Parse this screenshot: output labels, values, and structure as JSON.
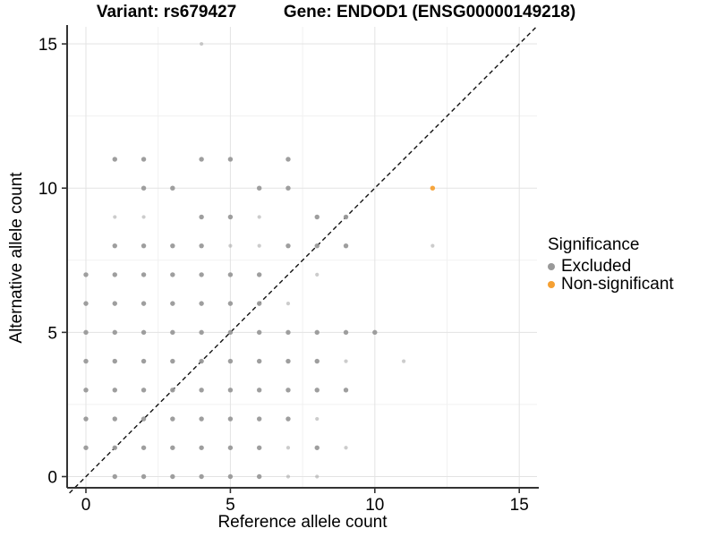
{
  "chart_data": {
    "type": "scatter",
    "title_left": "Variant: rs679427",
    "title_right": "Gene: ENDOD1 (ENSG00000149218)",
    "xlabel": "Reference allele count",
    "ylabel": "Alternative allele count",
    "xlim": [
      -0.65,
      15.6
    ],
    "ylim": [
      -0.45,
      15.6
    ],
    "x_ticks": [
      0,
      5,
      10,
      15
    ],
    "y_ticks": [
      0,
      5,
      10,
      15
    ],
    "x_minor_ticks": [
      2.5,
      7.5,
      12.5
    ],
    "y_minor_ticks": [
      2.5,
      7.5,
      12.5
    ],
    "grid": "on",
    "identity_line": {
      "type": "dashed",
      "slope": 1,
      "intercept": 0,
      "color": "#111111"
    },
    "legend": {
      "position": "right",
      "title": "Significance",
      "items": [
        {
          "label": "Excluded",
          "color": "#999999"
        },
        {
          "label": "Non-significant",
          "color": "#F5A033"
        }
      ]
    },
    "colors": {
      "excluded": "#999999",
      "non_significant": "#F5A033",
      "grid_major": "#e3e3e3",
      "grid_minor": "#f1f1f1",
      "axis": "#333333"
    },
    "series": [
      {
        "name": "Excluded",
        "color": "#999999",
        "points": [
          [
            1,
            0,
            "d"
          ],
          [
            2,
            0,
            "d"
          ],
          [
            3,
            0,
            "d"
          ],
          [
            4,
            0,
            "d"
          ],
          [
            5,
            0,
            "d"
          ],
          [
            6,
            0,
            "d"
          ],
          [
            7,
            0,
            "l"
          ],
          [
            8,
            0,
            "l"
          ],
          [
            0,
            1,
            "d"
          ],
          [
            1,
            1,
            "d"
          ],
          [
            2,
            1,
            "d"
          ],
          [
            3,
            1,
            "d"
          ],
          [
            4,
            1,
            "d"
          ],
          [
            5,
            1,
            "d"
          ],
          [
            6,
            1,
            "d"
          ],
          [
            7,
            1,
            "l"
          ],
          [
            8,
            1,
            "d"
          ],
          [
            9,
            1,
            "l"
          ],
          [
            0,
            2,
            "d"
          ],
          [
            1,
            2,
            "d"
          ],
          [
            2,
            2,
            "d"
          ],
          [
            3,
            2,
            "d"
          ],
          [
            4,
            2,
            "d"
          ],
          [
            5,
            2,
            "d"
          ],
          [
            6,
            2,
            "d"
          ],
          [
            7,
            2,
            "d"
          ],
          [
            8,
            2,
            "l"
          ],
          [
            0,
            3,
            "d"
          ],
          [
            1,
            3,
            "d"
          ],
          [
            2,
            3,
            "d"
          ],
          [
            3,
            3,
            "d"
          ],
          [
            4,
            3,
            "d"
          ],
          [
            5,
            3,
            "d"
          ],
          [
            6,
            3,
            "d"
          ],
          [
            7,
            3,
            "d"
          ],
          [
            8,
            3,
            "d"
          ],
          [
            9,
            3,
            "d"
          ],
          [
            0,
            4,
            "d"
          ],
          [
            1,
            4,
            "d"
          ],
          [
            2,
            4,
            "d"
          ],
          [
            3,
            4,
            "d"
          ],
          [
            4,
            4,
            "d"
          ],
          [
            5,
            4,
            "d"
          ],
          [
            6,
            4,
            "d"
          ],
          [
            7,
            4,
            "d"
          ],
          [
            8,
            4,
            "d"
          ],
          [
            9,
            4,
            "l"
          ],
          [
            11,
            4,
            "l"
          ],
          [
            0,
            5,
            "d"
          ],
          [
            1,
            5,
            "d"
          ],
          [
            2,
            5,
            "d"
          ],
          [
            3,
            5,
            "d"
          ],
          [
            4,
            5,
            "d"
          ],
          [
            5,
            5,
            "d"
          ],
          [
            6,
            5,
            "d"
          ],
          [
            7,
            5,
            "d"
          ],
          [
            8,
            5,
            "d"
          ],
          [
            9,
            5,
            "d"
          ],
          [
            10,
            5,
            "d"
          ],
          [
            0,
            6,
            "d"
          ],
          [
            1,
            6,
            "d"
          ],
          [
            2,
            6,
            "d"
          ],
          [
            3,
            6,
            "d"
          ],
          [
            4,
            6,
            "d"
          ],
          [
            5,
            6,
            "d"
          ],
          [
            6,
            6,
            "d"
          ],
          [
            7,
            6,
            "l"
          ],
          [
            0,
            7,
            "d"
          ],
          [
            1,
            7,
            "d"
          ],
          [
            2,
            7,
            "d"
          ],
          [
            3,
            7,
            "d"
          ],
          [
            4,
            7,
            "d"
          ],
          [
            5,
            7,
            "d"
          ],
          [
            6,
            7,
            "d"
          ],
          [
            8,
            7,
            "l"
          ],
          [
            1,
            8,
            "d"
          ],
          [
            2,
            8,
            "d"
          ],
          [
            3,
            8,
            "d"
          ],
          [
            4,
            8,
            "d"
          ],
          [
            5,
            8,
            "l"
          ],
          [
            6,
            8,
            "l"
          ],
          [
            7,
            8,
            "d"
          ],
          [
            8,
            8,
            "d"
          ],
          [
            9,
            8,
            "d"
          ],
          [
            12,
            8,
            "l"
          ],
          [
            1,
            9,
            "l"
          ],
          [
            2,
            9,
            "l"
          ],
          [
            4,
            9,
            "d"
          ],
          [
            5,
            9,
            "d"
          ],
          [
            6,
            9,
            "l"
          ],
          [
            8,
            9,
            "d"
          ],
          [
            9,
            9,
            "d"
          ],
          [
            2,
            10,
            "d"
          ],
          [
            3,
            10,
            "d"
          ],
          [
            6,
            10,
            "d"
          ],
          [
            7,
            10,
            "d"
          ],
          [
            1,
            11,
            "d"
          ],
          [
            2,
            11,
            "d"
          ],
          [
            4,
            11,
            "d"
          ],
          [
            5,
            11,
            "d"
          ],
          [
            7,
            11,
            "d"
          ],
          [
            4,
            15,
            "l"
          ]
        ]
      },
      {
        "name": "Non-significant",
        "color": "#F5A033",
        "points": [
          [
            12,
            10,
            "d"
          ]
        ]
      }
    ]
  }
}
